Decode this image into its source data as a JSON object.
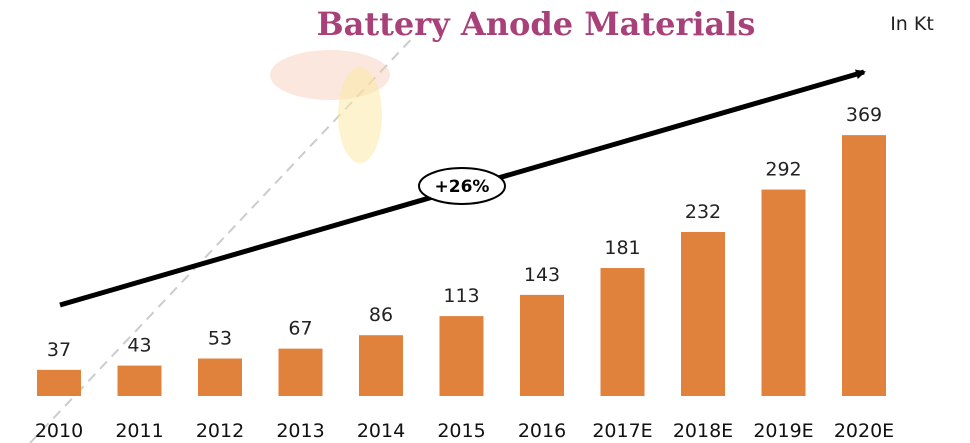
{
  "chart_data": {
    "type": "bar",
    "title": "Battery Anode Materials",
    "unit_label": "In Kt",
    "annotation": "+26%",
    "categories": [
      "2010",
      "2011",
      "2012",
      "2013",
      "2014",
      "2015",
      "2016",
      "2017E",
      "2018E",
      "2019E",
      "2020E"
    ],
    "values": [
      37,
      43,
      53,
      67,
      86,
      113,
      143,
      181,
      232,
      292,
      369
    ],
    "color": "#e0823c",
    "data_labels": true
  }
}
